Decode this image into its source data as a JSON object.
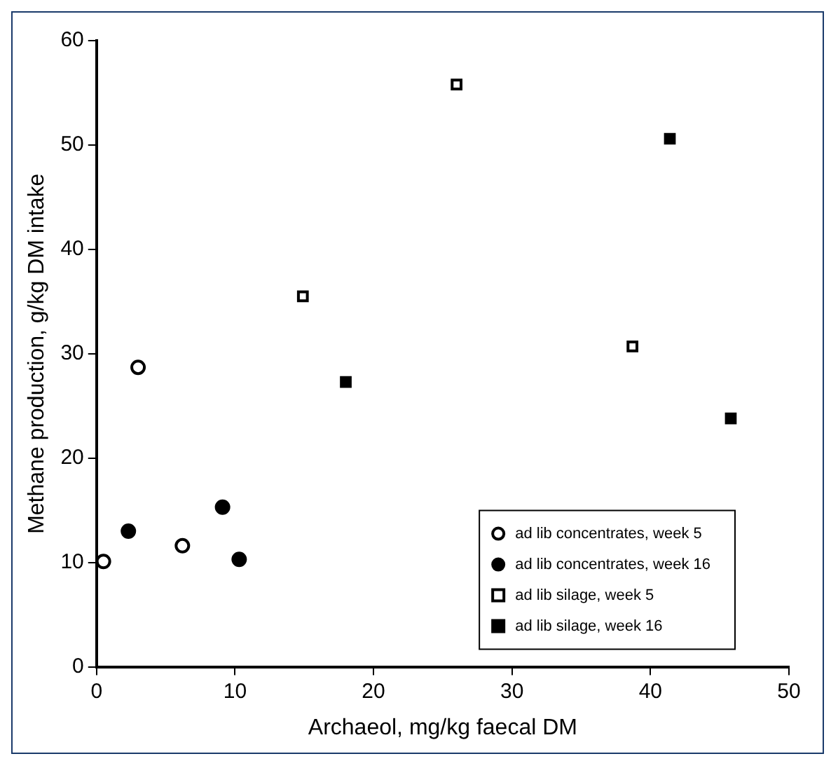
{
  "chart_data": {
    "type": "scatter",
    "xlabel": "Archaeol, mg/kg faecal DM",
    "ylabel": "Methane production, g/kg DM intake",
    "xlim": [
      0,
      50
    ],
    "xticks": [
      0,
      10,
      20,
      30,
      40,
      50
    ],
    "ylim": [
      0,
      60
    ],
    "yticks": [
      0,
      10,
      20,
      30,
      40,
      50,
      60
    ],
    "grid": false,
    "legend": "bottom right",
    "series": [
      {
        "name": "ad lib concentrates, week 5",
        "color": "#ffffff",
        "marker": "circle",
        "x": [
          0.5,
          3.0,
          6.2
        ],
        "values": [
          10.1,
          28.7,
          11.6
        ]
      },
      {
        "name": "ad lib concentrates, week 16",
        "color": "#000000",
        "marker": "circle",
        "x": [
          2.3,
          9.1,
          10.3
        ],
        "values": [
          13.0,
          15.3,
          10.3
        ]
      },
      {
        "name": "ad lib silage, week 5",
        "color": "#ffffff",
        "marker": "square",
        "x": [
          14.9,
          26.0,
          38.7
        ],
        "values": [
          35.5,
          55.8,
          30.7
        ]
      },
      {
        "name": "ad lib silage, week 16",
        "color": "#000000",
        "marker": "square",
        "x": [
          18.0,
          41.4,
          45.8
        ],
        "values": [
          27.3,
          50.6,
          23.8
        ]
      }
    ]
  }
}
